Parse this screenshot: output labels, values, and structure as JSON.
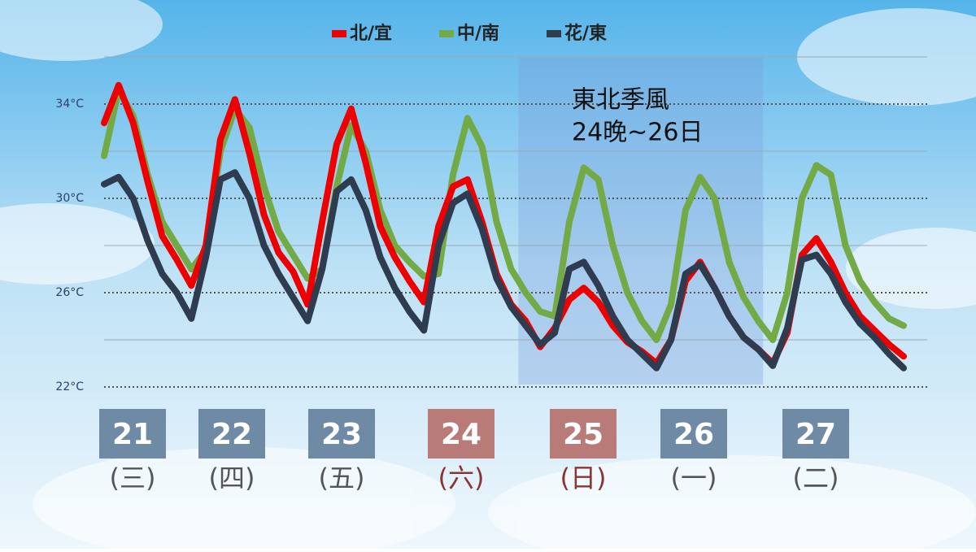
{
  "chart_data": {
    "type": "line",
    "legend": "top",
    "xlim": [
      0,
      165
    ],
    "ylim": [
      22,
      36
    ],
    "yticks": [
      {
        "value": 22,
        "label": "22°C"
      },
      {
        "value": 26,
        "label": "26°C"
      },
      {
        "value": 30,
        "label": "30°C"
      },
      {
        "value": 34,
        "label": "34°C"
      }
    ],
    "minor_ticks": [
      24,
      28,
      32,
      36
    ],
    "x": [
      0,
      3,
      6,
      9,
      12,
      15,
      18,
      21,
      24,
      27,
      30,
      33,
      36,
      39,
      42,
      45,
      48,
      51,
      54,
      57,
      60,
      63,
      66,
      69,
      72,
      75,
      78,
      81,
      84,
      87,
      90,
      93,
      96,
      99,
      102,
      105,
      108,
      111,
      114,
      117,
      120,
      123,
      126,
      129,
      132,
      135,
      138,
      141,
      144,
      147,
      150,
      153,
      156,
      159,
      162,
      165
    ],
    "series": [
      {
        "name": "中/南",
        "color": "#73aa45",
        "values": [
          31.8,
          34.6,
          33.5,
          31.0,
          29.0,
          28.0,
          27.0,
          27.8,
          32.0,
          33.8,
          33.0,
          30.5,
          28.6,
          27.6,
          26.6,
          27.0,
          30.5,
          33.1,
          32.0,
          29.5,
          28.0,
          27.3,
          26.7,
          26.8,
          31.0,
          33.4,
          32.2,
          29.0,
          27.0,
          26.0,
          25.2,
          25.0,
          29.0,
          31.3,
          30.8,
          28.0,
          26.0,
          24.8,
          24.0,
          25.5,
          29.5,
          30.9,
          30.0,
          27.3,
          25.8,
          24.8,
          24.0,
          26.0,
          30.0,
          31.4,
          31.0,
          28.0,
          26.5,
          25.6,
          24.9,
          24.6
        ]
      },
      {
        "name": "北/宜",
        "color": "#ee0000",
        "values": [
          33.2,
          34.8,
          33.2,
          30.7,
          28.4,
          27.4,
          26.3,
          28.0,
          32.5,
          34.2,
          31.9,
          29.3,
          27.7,
          26.9,
          25.5,
          29.0,
          32.3,
          33.8,
          31.5,
          28.8,
          27.5,
          26.5,
          25.6,
          28.8,
          30.5,
          30.8,
          29.0,
          26.8,
          25.5,
          24.8,
          23.7,
          24.5,
          25.7,
          26.2,
          25.6,
          24.6,
          23.9,
          23.5,
          23.0,
          24.0,
          26.5,
          27.3,
          26.2,
          25.0,
          24.1,
          23.6,
          23.0,
          24.3,
          27.6,
          28.3,
          27.3,
          26.0,
          25.0,
          24.4,
          23.8,
          23.3
        ]
      },
      {
        "name": "花/東",
        "color": "#2f3b4f",
        "values": [
          30.6,
          30.9,
          30.0,
          28.2,
          26.8,
          26.0,
          24.9,
          27.5,
          30.8,
          31.1,
          30.0,
          28.0,
          26.8,
          25.8,
          24.8,
          27.0,
          30.3,
          30.8,
          29.5,
          27.5,
          26.2,
          25.2,
          24.4,
          28.0,
          29.8,
          30.2,
          28.7,
          26.6,
          25.4,
          24.6,
          23.8,
          24.3,
          27.0,
          27.3,
          26.3,
          25.0,
          24.0,
          23.4,
          22.8,
          24.0,
          26.8,
          27.2,
          26.2,
          25.0,
          24.1,
          23.6,
          22.9,
          24.5,
          27.4,
          27.6,
          26.8,
          25.6,
          24.7,
          24.1,
          23.4,
          22.8
        ]
      }
    ],
    "shade": {
      "x": [
        85.5,
        136
      ],
      "color": "#7aa0dc",
      "label": [
        "東北季風",
        "24晚~26日"
      ]
    },
    "days": [
      {
        "date": "21",
        "weekday": "(三)",
        "color": "#6e8aa5",
        "text_color": "#555555"
      },
      {
        "date": "22",
        "weekday": "(四)",
        "color": "#6e8aa5",
        "text_color": "#555555"
      },
      {
        "date": "23",
        "weekday": "(五)",
        "color": "#6e8aa5",
        "text_color": "#555555"
      },
      {
        "date": "24",
        "weekday": "(六)",
        "color": "#b97b78",
        "text_color": "#8a3533"
      },
      {
        "date": "25",
        "weekday": "(日)",
        "color": "#b97b78",
        "text_color": "#8a3533"
      },
      {
        "date": "26",
        "weekday": "(一)",
        "color": "#6e8aa5",
        "text_color": "#555555"
      },
      {
        "date": "27",
        "weekday": "(二)",
        "color": "#6e8aa5",
        "text_color": "#555555"
      }
    ]
  }
}
